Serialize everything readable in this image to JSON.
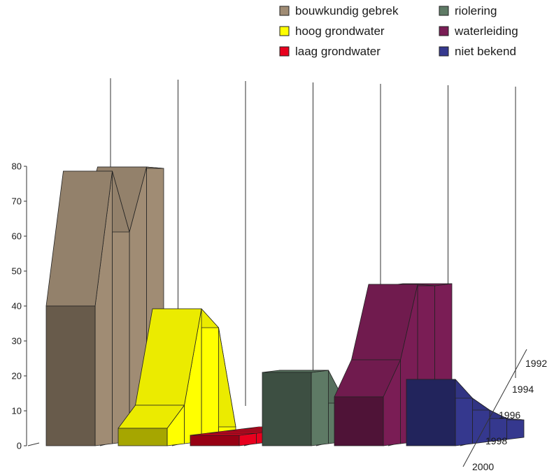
{
  "chart_data": {
    "type": "area",
    "title": "",
    "xlabel": "",
    "ylabel": "",
    "ylim": [
      0,
      80
    ],
    "y_ticks": [
      "0",
      "10",
      "20",
      "30",
      "40",
      "50",
      "60",
      "70",
      "80"
    ],
    "depth_categories": [
      "1992",
      "1994",
      "1996",
      "1998",
      "2000"
    ],
    "legend_position": "top-right",
    "grid": false,
    "series": [
      {
        "name": "bouwkundig gebrek",
        "color": "#a08c74",
        "values": [
          77,
          78,
          60,
          78,
          40
        ]
      },
      {
        "name": "hoog grondwater",
        "color": "#ffff00",
        "values": [
          3,
          32,
          38,
          11,
          5
        ]
      },
      {
        "name": "laag grondwater",
        "color": "#e8001e",
        "values": [
          3,
          3,
          3,
          3,
          3
        ]
      },
      {
        "name": "riolering",
        "color": "#5e7a65",
        "values": [
          12,
          12,
          11,
          21,
          21
        ]
      },
      {
        "name": "waterleiding",
        "color": "#7a1d55",
        "values": [
          44,
          44,
          45,
          24,
          14
        ]
      },
      {
        "name": "niet bekend",
        "color": "#35388e",
        "values": [
          5,
          6,
          9,
          13,
          19
        ]
      }
    ],
    "legend_order": [
      0,
      3,
      1,
      4,
      2,
      5
    ]
  }
}
